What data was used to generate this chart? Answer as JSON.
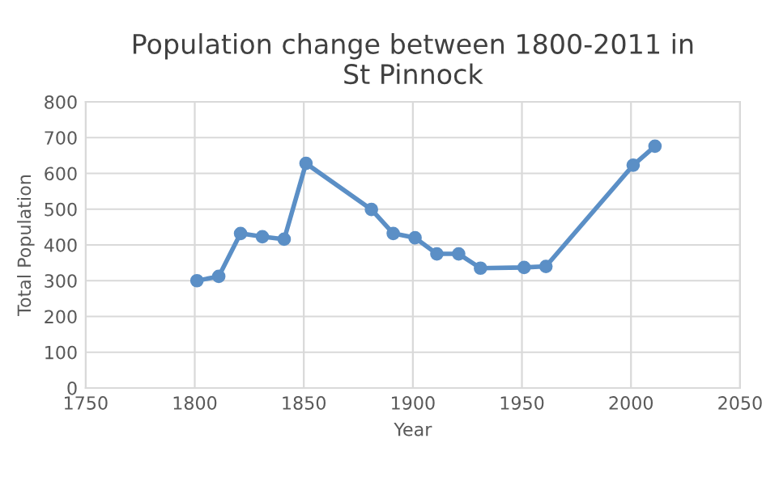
{
  "chart_data": {
    "type": "line",
    "title": "Population change between 1800-2011 in\nSt Pinnock",
    "xlabel": "Year",
    "ylabel": "Total Population",
    "x": [
      1801,
      1811,
      1821,
      1831,
      1841,
      1851,
      1881,
      1891,
      1901,
      1911,
      1921,
      1931,
      1951,
      1961,
      2001,
      2011
    ],
    "series": [
      {
        "color": "#5b8fc6",
        "values": [
          300,
          312,
          432,
          423,
          416,
          628,
          499,
          432,
          420,
          375,
          375,
          335,
          337,
          340,
          623,
          676
        ]
      }
    ],
    "xlim": [
      1750,
      2050
    ],
    "xticks": [
      1750,
      1800,
      1850,
      1900,
      1950,
      2000,
      2050
    ],
    "ylim": [
      0,
      800
    ],
    "yticks": [
      0,
      100,
      200,
      300,
      400,
      500,
      600,
      700,
      800
    ],
    "grid": true,
    "marker": "circle",
    "line_style": "solid"
  }
}
